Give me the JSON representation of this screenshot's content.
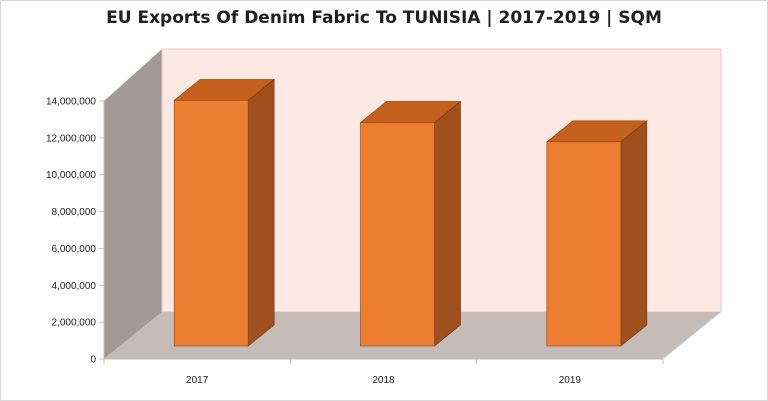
{
  "chart_data": {
    "type": "bar",
    "title": "EU Exports Of Denim Fabric To TUNISIA  |  2017-2019  |  SQM",
    "categories": [
      "2017",
      "2018",
      "2019"
    ],
    "values": [
      13600000,
      12400000,
      11350000
    ],
    "xlabel": "",
    "ylabel": "",
    "ylim": [
      0,
      14000000
    ],
    "yticks": [
      0,
      2000000,
      4000000,
      6000000,
      8000000,
      10000000,
      12000000,
      14000000
    ],
    "ytick_labels": [
      "0",
      "2,000,000",
      "4,000,000",
      "6,000,000",
      "8,000,000",
      "10,000,000",
      "12,000,000",
      "14,000,000"
    ],
    "grid": false,
    "legend": "none",
    "style": "3d",
    "colors": {
      "bar_front": "#ed7d31",
      "bar_side": "#a0501c",
      "bar_top": "#c6601f",
      "back_wall": "#fde9e3",
      "side_wall": "#a39a97",
      "floor": "#c5bcb8"
    }
  }
}
